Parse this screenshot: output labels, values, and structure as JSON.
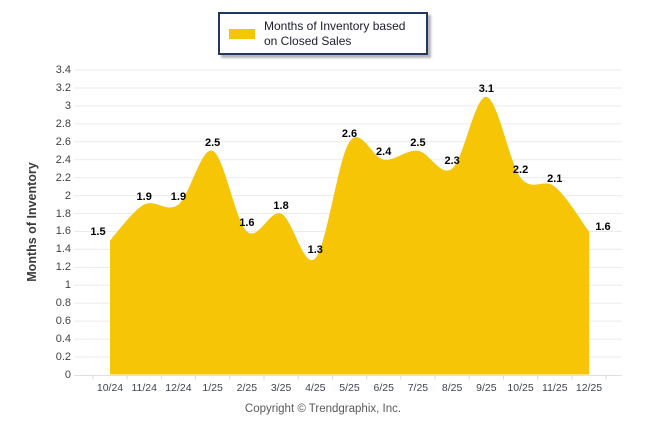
{
  "chart_data": {
    "type": "area",
    "categories": [
      "10/24",
      "11/24",
      "12/24",
      "1/25",
      "2/25",
      "3/25",
      "4/25",
      "5/25",
      "6/25",
      "7/25",
      "8/25",
      "9/25",
      "10/25",
      "11/25",
      "12/25"
    ],
    "values": [
      1.5,
      1.9,
      1.9,
      2.5,
      1.6,
      1.8,
      1.3,
      2.6,
      2.4,
      2.5,
      2.3,
      3.1,
      2.2,
      2.1,
      1.6
    ],
    "title": "",
    "xlabel": "",
    "ylabel": "Months of Inventory",
    "ylim": [
      0,
      3.4
    ],
    "ytick_step": 0.2,
    "grid": "horizontal",
    "legend": "Months of Inventory based on Closed Sales",
    "legend_position": "top-center",
    "colors": {
      "area_fill": "#F5C506",
      "legend_border": "#1F3864",
      "gridline": "#EBEBEB",
      "axis_line": "#E0E0E0",
      "tick_mark": "#D9D9D9",
      "data_label": "#000000",
      "tick_label": "#404040",
      "footer_text": "#595959"
    }
  },
  "footer": {
    "text": "Copyright © Trendgraphix, Inc."
  }
}
